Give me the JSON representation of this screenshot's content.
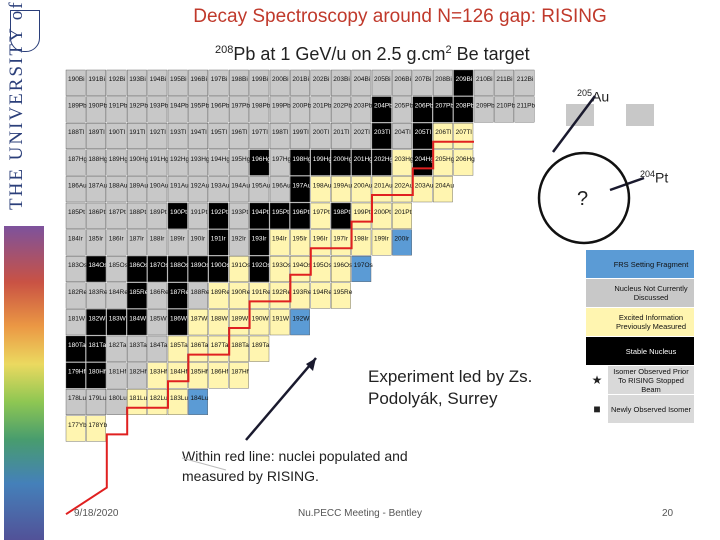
{
  "header": {
    "title": "Decay Spectroscopy around N=126 gap: RISING",
    "subtitle_mass": "208",
    "subtitle_text": "Pb at 1 GeV/u on 2.5 g.cm",
    "subtitle_exp": "2",
    "subtitle_tail": " Be target"
  },
  "sidebar": {
    "university": "THE UNIVERSITY of York"
  },
  "chart_labels": {
    "au205_mass": "205",
    "au205_el": "Au",
    "pt204_mass": "204",
    "pt204_el": "Pt",
    "question": "?"
  },
  "chart_rows": [
    {
      "el": "Bi",
      "cols": [
        13,
        14,
        15,
        16,
        17,
        18,
        19,
        20,
        21,
        22,
        23,
        24,
        25,
        26,
        27,
        28,
        29,
        30,
        31,
        32,
        33,
        34,
        35
      ],
      "masses": [
        190,
        191,
        192,
        193,
        194,
        195,
        196,
        197,
        198,
        199,
        200,
        201,
        202,
        203,
        204,
        205,
        206,
        207,
        208,
        209,
        210,
        211,
        212
      ]
    },
    {
      "el": "Pb",
      "cols": [
        13,
        14,
        15,
        16,
        17,
        18,
        19,
        20,
        21,
        22,
        23,
        24,
        25,
        26,
        27,
        28,
        29,
        30,
        31,
        32,
        33,
        34,
        35
      ],
      "masses": [
        189,
        190,
        191,
        192,
        193,
        194,
        195,
        196,
        197,
        198,
        199,
        200,
        201,
        202,
        203,
        204,
        205,
        206,
        207,
        208,
        209,
        210,
        211
      ]
    },
    {
      "el": "Tl",
      "cols": [
        13,
        14,
        15,
        16,
        17,
        18,
        19,
        20,
        21,
        22,
        23,
        24,
        25,
        26,
        27,
        28,
        29,
        30,
        31,
        32
      ],
      "masses": [
        188,
        189,
        190,
        191,
        192,
        193,
        194,
        195,
        196,
        197,
        198,
        199,
        200,
        201,
        202,
        203,
        204,
        205,
        206,
        207
      ]
    },
    {
      "el": "Hg",
      "cols": [
        13,
        14,
        15,
        16,
        17,
        18,
        19,
        20,
        21,
        22,
        23,
        24,
        25,
        26,
        27,
        28,
        29,
        30,
        31,
        32
      ],
      "masses": [
        187,
        188,
        189,
        190,
        191,
        192,
        193,
        194,
        195,
        196,
        197,
        198,
        199,
        200,
        201,
        202,
        203,
        204,
        205,
        206
      ]
    },
    {
      "el": "Au",
      "cols": [
        13,
        14,
        15,
        16,
        17,
        18,
        19,
        20,
        21,
        22,
        23,
        24,
        25,
        26,
        27,
        28,
        29,
        30,
        31
      ],
      "masses": [
        186,
        187,
        188,
        189,
        190,
        191,
        192,
        193,
        194,
        195,
        196,
        197,
        198,
        199,
        200,
        201,
        202,
        203,
        204
      ]
    },
    {
      "el": "Pt",
      "cols": [
        13,
        14,
        15,
        16,
        17,
        18,
        19,
        20,
        21,
        22,
        23,
        24,
        25,
        26,
        27,
        28,
        29
      ],
      "masses": [
        185,
        186,
        187,
        188,
        189,
        190,
        191,
        192,
        193,
        194,
        195,
        196,
        197,
        198,
        199,
        200,
        201
      ]
    },
    {
      "el": "Ir",
      "cols": [
        13,
        14,
        15,
        16,
        17,
        18,
        19,
        20,
        21,
        22,
        23,
        24,
        25,
        26,
        27,
        28,
        29
      ],
      "masses": [
        184,
        185,
        186,
        187,
        188,
        189,
        190,
        191,
        192,
        193,
        194,
        195,
        196,
        197,
        198,
        199,
        200
      ]
    },
    {
      "el": "Os",
      "cols": [
        13,
        14,
        15,
        16,
        17,
        18,
        19,
        20,
        21,
        22,
        23,
        24,
        25,
        26,
        27
      ],
      "masses": [
        183,
        184,
        185,
        186,
        187,
        188,
        189,
        190,
        191,
        192,
        193,
        194,
        195,
        196,
        197
      ]
    },
    {
      "el": "Re",
      "cols": [
        13,
        14,
        15,
        16,
        17,
        18,
        19,
        20,
        21,
        22,
        23,
        24,
        25,
        26
      ],
      "masses": [
        182,
        183,
        184,
        185,
        186,
        187,
        188,
        189,
        190,
        191,
        192,
        193,
        194,
        195
      ]
    },
    {
      "el": "W",
      "cols": [
        13,
        14,
        15,
        16,
        17,
        18,
        19,
        20,
        21,
        22,
        23,
        24
      ],
      "masses": [
        181,
        182,
        183,
        184,
        185,
        186,
        187,
        188,
        189,
        190,
        191,
        192
      ]
    },
    {
      "el": "Ta",
      "cols": [
        13,
        14,
        15,
        16,
        17,
        18,
        19,
        20,
        21,
        22
      ],
      "masses": [
        180,
        181,
        182,
        183,
        184,
        185,
        186,
        187,
        188,
        189
      ]
    },
    {
      "el": "Hf",
      "cols": [
        13,
        14,
        15,
        16,
        17,
        18,
        19,
        20,
        21
      ],
      "masses": [
        179,
        180,
        181,
        182,
        183,
        184,
        185,
        186,
        187
      ]
    },
    {
      "el": "Lu",
      "cols": [
        13,
        14,
        15,
        16,
        17,
        18,
        19
      ],
      "masses": [
        178,
        179,
        180,
        181,
        182,
        183,
        184
      ]
    },
    {
      "el": "Yb",
      "cols": [
        13,
        14
      ],
      "masses": [
        177,
        178
      ]
    }
  ],
  "legend": {
    "title": "",
    "items": [
      {
        "swatch": "#5b9bd5",
        "symbol": "",
        "label": "FRS Setting Fragment"
      },
      {
        "swatch": "#c8c8c8",
        "symbol": "",
        "label": "Nucleus Not Currently Discussed"
      },
      {
        "swatch": "#fff5b0",
        "symbol": "",
        "label": "Excited Information Previously Measured"
      },
      {
        "swatch": "#000000",
        "symbol": "",
        "label": "Stable Nucleus"
      },
      {
        "swatch": "#ffffff",
        "symbol": "★",
        "label": "Isomer Observed Prior To RISING Stopped Beam"
      },
      {
        "swatch": "#ffffff",
        "symbol": "■",
        "label": "Newly Observed Isomer"
      }
    ]
  },
  "notes": {
    "experiment_line1": "Experiment led by Zs.",
    "experiment_line2": "Podolyák, Surrey",
    "redline_line1": "Within red line: nuclei populated and",
    "redline_line2": "measured by RISING."
  },
  "footer": {
    "date": "9/18/2020",
    "center": "Nu.PECC Meeting - Bentley",
    "page": "20"
  },
  "colors": {
    "title": "#c0392b",
    "redline": "#e02020",
    "stable": "#000000",
    "frs": "#5b9bd5",
    "measured": "#fff5b0",
    "notdiscussed": "#c8c8c8"
  }
}
